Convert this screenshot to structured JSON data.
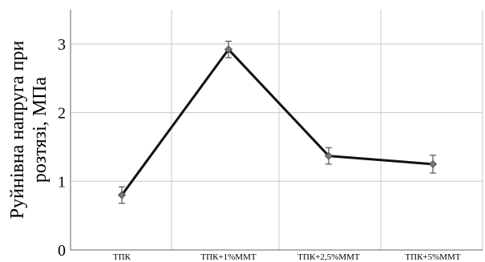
{
  "chart_data": {
    "type": "line",
    "title": "",
    "ylabel_lines": [
      "Руйнівна напруга при",
      "розтязі, МПа"
    ],
    "xlabel": "",
    "categories": [
      "ТПК",
      "ТПК+1%ММТ",
      "ТПК+2,5%ММТ",
      "ТПК+5%ММТ"
    ],
    "yticks": [
      "0",
      "1",
      "2",
      "3"
    ],
    "ylim": [
      0,
      3.5
    ],
    "grid": true,
    "legend": "none",
    "series": [
      {
        "values": [
          0.8,
          2.92,
          1.37,
          1.25
        ],
        "error": [
          0.12,
          0.12,
          0.12,
          0.13
        ],
        "color": "#111111",
        "marker_color": "#777777"
      }
    ]
  }
}
